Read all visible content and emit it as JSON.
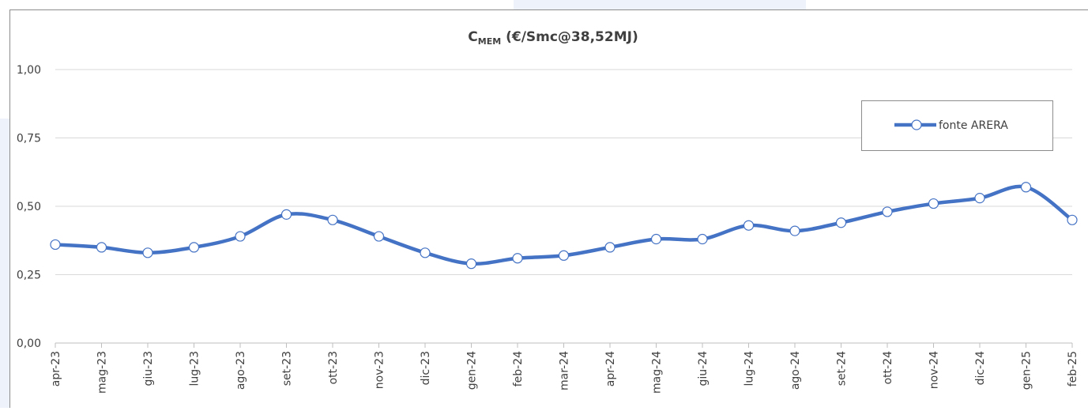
{
  "chart_data": {
    "type": "line",
    "title": {
      "base": "C",
      "subscript": "MEM",
      "rest": " (€/Smc@38,52MJ)"
    },
    "categories": [
      "apr-23",
      "mag-23",
      "giu-23",
      "lug-23",
      "ago-23",
      "set-23",
      "ott-23",
      "nov-23",
      "dic-23",
      "gen-24",
      "feb-24",
      "mar-24",
      "apr-24",
      "mag-24",
      "giu-24",
      "lug-24",
      "ago-24",
      "set-24",
      "ott-24",
      "nov-24",
      "dic-24",
      "gen-25",
      "feb-25"
    ],
    "series": [
      {
        "name": "fonte ARERA",
        "color": "#4472c4",
        "values": [
          0.36,
          0.35,
          0.33,
          0.35,
          0.39,
          0.47,
          0.45,
          0.39,
          0.33,
          0.29,
          0.31,
          0.32,
          0.35,
          0.38,
          0.38,
          0.43,
          0.41,
          0.44,
          0.48,
          0.51,
          0.53,
          0.57,
          0.45
        ]
      }
    ],
    "ylim": [
      0,
      1
    ],
    "yticks": [
      {
        "value": 0,
        "label": "0,00"
      },
      {
        "value": 0.25,
        "label": "0,25"
      },
      {
        "value": 0.5,
        "label": "0,50"
      },
      {
        "value": 0.75,
        "label": "0,75"
      },
      {
        "value": 1,
        "label": "1,00"
      }
    ],
    "grid": true,
    "smooth": true,
    "legend": "top-right"
  }
}
